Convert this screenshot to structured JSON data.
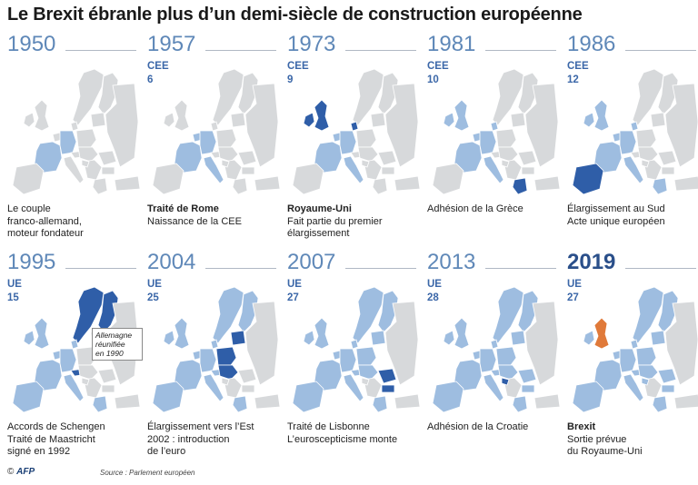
{
  "title": "Le Brexit ébranle plus d’un demi-siècle de construction européenne",
  "colors": {
    "base": "#d7d9db",
    "member": "#9ebde0",
    "new_member": "#2f5ea8",
    "brexit": "#e07a3a",
    "year": "#5f88b8",
    "label": "#3b67a8"
  },
  "panels": [
    {
      "year": "1950",
      "org": "",
      "count": "",
      "caption_bold": "",
      "caption": [
        "Le couple",
        "franco-allemand,",
        "moteur fondateur"
      ]
    },
    {
      "year": "1957",
      "org": "CEE",
      "count": "6",
      "caption_bold": "Traité de Rome",
      "caption": [
        "Naissance de la CEE"
      ]
    },
    {
      "year": "1973",
      "org": "CEE",
      "count": "9",
      "caption_bold": "Royaume-Uni",
      "caption": [
        "Fait partie du premier",
        "élargissement"
      ]
    },
    {
      "year": "1981",
      "org": "CEE",
      "count": "10",
      "caption_bold": "",
      "caption": [
        "Adhésion de la Grèce"
      ]
    },
    {
      "year": "1986",
      "org": "CEE",
      "count": "12",
      "caption_bold": "",
      "caption": [
        "Élargissement au Sud",
        "Acte unique européen"
      ]
    },
    {
      "year": "1995",
      "org": "UE",
      "count": "15",
      "caption_bold": "",
      "caption": [
        "Accords de Schengen",
        "Traité de Maastricht",
        "signé en 1992"
      ],
      "note": [
        "Allemagne",
        "réunifiée",
        "en 1990"
      ]
    },
    {
      "year": "2004",
      "org": "UE",
      "count": "25",
      "caption_bold": "",
      "caption": [
        "Élargissement vers l’Est",
        "2002 : introduction",
        "de l’euro"
      ]
    },
    {
      "year": "2007",
      "org": "UE",
      "count": "27",
      "caption_bold": "",
      "caption": [
        "Traité de Lisbonne",
        "L’euroscepticisme monte"
      ]
    },
    {
      "year": "2013",
      "org": "UE",
      "count": "28",
      "caption_bold": "",
      "caption": [
        "Adhésion de la Croatie"
      ]
    },
    {
      "year": "2019",
      "org": "UE",
      "count": "27",
      "caption_bold": "Brexit",
      "caption": [
        "Sortie prévue",
        "du Royaume-Uni"
      ]
    }
  ],
  "footer": {
    "copyright": "©",
    "agency": "AFP",
    "source": "Source : Parlement européen"
  }
}
